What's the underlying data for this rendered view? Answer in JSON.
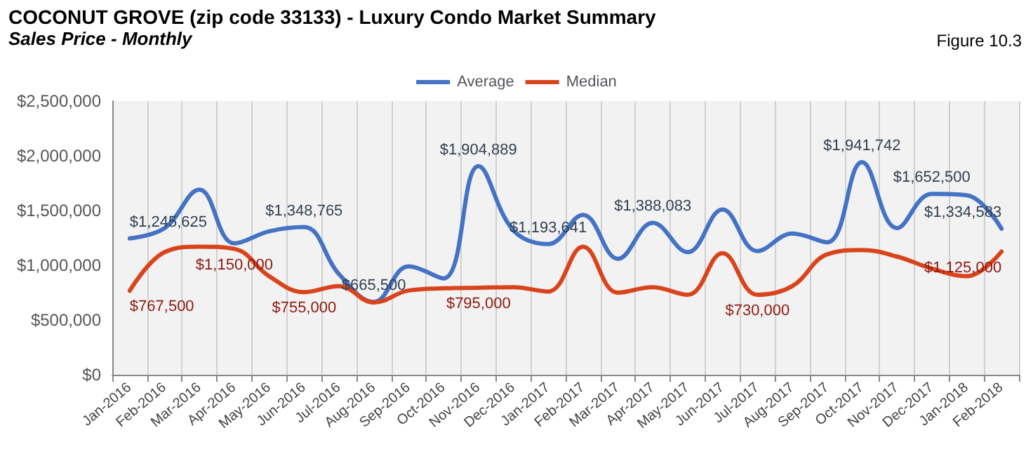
{
  "chart_data": {
    "type": "line",
    "title": "COCONUT GROVE (zip code 33133) - Luxury Condo Market Summary",
    "subtitle": "Sales Price - Monthly",
    "annotations": [
      "Figure 10.3"
    ],
    "categories": [
      "Jan-2016",
      "Feb-2016",
      "Mar-2016",
      "Apr-2016",
      "May-2016",
      "Jun-2016",
      "Jul-2016",
      "Aug-2016",
      "Sep-2016",
      "Oct-2016",
      "Nov-2016",
      "Dec-2016",
      "Jan-2017",
      "Feb-2017",
      "Mar-2017",
      "Apr-2017",
      "May-2017",
      "Jun-2017",
      "Jul-2017",
      "Aug-2017",
      "Sep-2017",
      "Oct-2017",
      "Nov-2017",
      "Dec-2017",
      "Jan-2018",
      "Feb-2018"
    ],
    "series": [
      {
        "name": "Average",
        "color": "#4472c4",
        "values": [
          1245625,
          1340000,
          1690000,
          1200000,
          1310000,
          1348765,
          920000,
          665500,
          990000,
          880000,
          1904889,
          1320000,
          1193641,
          1460000,
          1060000,
          1388083,
          1120000,
          1510000,
          1130000,
          1290000,
          1210000,
          1941742,
          1340000,
          1652500,
          1640000,
          1334583
        ],
        "value_labels": [
          "$1,245,625",
          null,
          null,
          null,
          null,
          "$1,348,765",
          null,
          "$665,500",
          null,
          null,
          "$1,904,889",
          null,
          "$1,193,641",
          null,
          null,
          "$1,388,083",
          null,
          null,
          null,
          null,
          null,
          "$1,941,742",
          null,
          "$1,652,500",
          null,
          "$1,334,583"
        ]
      },
      {
        "name": "Median",
        "color": "#d9441c",
        "values": [
          767500,
          1120000,
          1170000,
          1150000,
          900000,
          755000,
          810000,
          660000,
          770000,
          790000,
          795000,
          800000,
          760000,
          1170000,
          750000,
          800000,
          730000,
          1110000,
          730000,
          810000,
          1100000,
          1140000,
          1080000,
          970000,
          900000,
          1125000
        ],
        "value_labels": [
          "$767,500",
          null,
          null,
          "$1,150,000",
          null,
          "$755,000",
          null,
          null,
          null,
          null,
          "$795,000",
          null,
          null,
          null,
          null,
          null,
          null,
          null,
          "$730,000",
          null,
          null,
          null,
          null,
          null,
          null,
          "$1,125,000"
        ]
      }
    ],
    "ylim": [
      0,
      2500000
    ],
    "yticks": [
      {
        "value": 0,
        "label": "$0"
      },
      {
        "value": 500000,
        "label": "$500,000"
      },
      {
        "value": 1000000,
        "label": "$1,000,000"
      },
      {
        "value": 1500000,
        "label": "$1,500,000"
      },
      {
        "value": 2000000,
        "label": "$2,000,000"
      },
      {
        "value": 2500000,
        "label": "$2,500,000"
      }
    ],
    "grid": "x",
    "legend": "top",
    "marker": "none",
    "line_style": "solid"
  }
}
